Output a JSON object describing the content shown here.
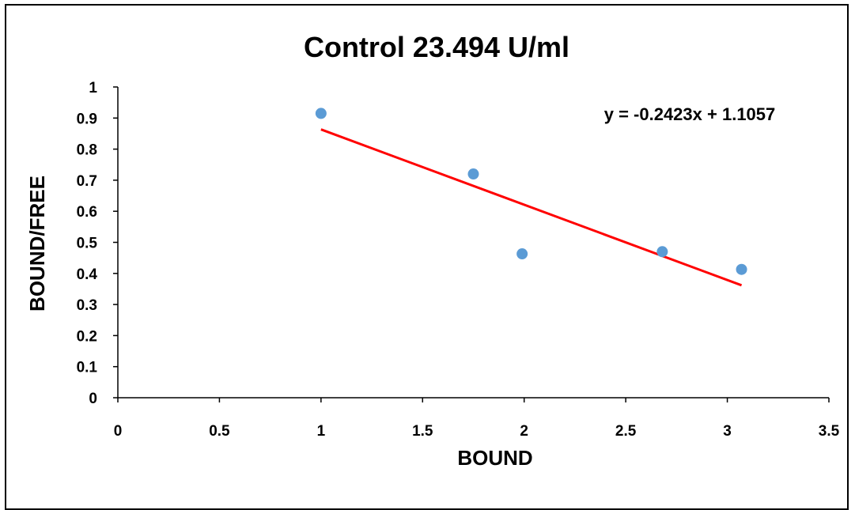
{
  "chart_data": {
    "type": "scatter",
    "title": "Control 23.494 U/ml",
    "xlabel": "BOUND",
    "ylabel": "BOUND/FREE",
    "xlim": [
      0,
      3.5
    ],
    "ylim": [
      0,
      1
    ],
    "x_ticks": [
      "0",
      "0.5",
      "1",
      "1.5",
      "2",
      "2.5",
      "3",
      "3.5"
    ],
    "y_ticks": [
      "0",
      "0.1",
      "0.2",
      "0.3",
      "0.4",
      "0.5",
      "0.6",
      "0.7",
      "0.8",
      "0.9",
      "1"
    ],
    "grid": false,
    "legend": "none",
    "series": [
      {
        "points": [
          {
            "x": 1.0,
            "y": 0.915
          },
          {
            "x": 1.75,
            "y": 0.72
          },
          {
            "x": 1.99,
            "y": 0.463
          },
          {
            "x": 2.68,
            "y": 0.47
          },
          {
            "x": 3.07,
            "y": 0.413
          }
        ],
        "color": "#5B9BD5"
      }
    ],
    "trendline": {
      "type": "linear",
      "slope": -0.2423,
      "intercept": 1.1057,
      "x_range": [
        1.0,
        3.07
      ],
      "color": "#FF0000",
      "equation_label": "y = -0.2423x + 1.1057"
    }
  }
}
